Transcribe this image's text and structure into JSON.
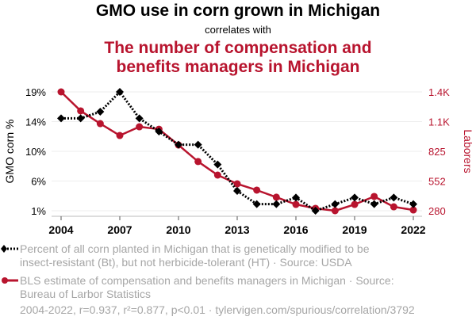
{
  "header": {
    "title": "GMO use in corn grown in Michigan",
    "subtitle": "correlates with",
    "title2_line1": "The number of compensation and",
    "title2_line2": "benefits managers in Michigan"
  },
  "colors": {
    "series1": "#000000",
    "series2": "#b8142e",
    "legend_text": "#a6a6a6",
    "grid": "#eeeeee"
  },
  "chart_data": {
    "type": "line",
    "x": [
      2004,
      2005,
      2006,
      2007,
      2008,
      2009,
      2010,
      2011,
      2012,
      2013,
      2014,
      2015,
      2016,
      2017,
      2018,
      2019,
      2020,
      2021,
      2022
    ],
    "xticks": [
      "2004",
      "2007",
      "2010",
      "2013",
      "2016",
      "2019",
      "2022"
    ],
    "xtick_values": [
      2004,
      2007,
      2010,
      2013,
      2016,
      2019,
      2022
    ],
    "xlim": [
      2004,
      2022
    ],
    "series": [
      {
        "name": "Percent of all corn planted in Michigan that is genetically modified to be insect-resistant (Bt), but not herbicide-tolerant (HT) · Source: USDA",
        "axis": "left",
        "style": "dotted-diamond",
        "values": [
          15,
          15,
          16,
          19,
          15,
          13,
          11,
          11,
          8,
          4,
          2,
          2,
          3,
          1,
          2,
          3,
          2,
          3,
          2
        ]
      },
      {
        "name": "BLS estimate of compensation and benefits managers in Michigan · Source: Bureau of Larbor Statistics",
        "axis": "right",
        "style": "solid-circle",
        "values": [
          1370,
          1196,
          1079,
          970,
          1050,
          1028,
          883,
          731,
          607,
          527,
          469,
          404,
          338,
          302,
          280,
          338,
          411,
          316,
          287
        ]
      }
    ],
    "left_axis": {
      "label": "GMO corn %",
      "ticks": [
        "1%",
        "6%",
        "10%",
        "14%",
        "19%"
      ],
      "ylim": [
        1,
        19
      ]
    },
    "right_axis": {
      "label": "Laborers",
      "ticks": [
        "280",
        "552",
        "825",
        "1.1K",
        "1.4K"
      ],
      "ylim": [
        280,
        1370
      ]
    },
    "grid": true,
    "legend_position": "bottom"
  },
  "legend": {
    "item1_line1": "Percent of all corn planted in Michigan that is genetically modified to be",
    "item1_line2": "insect-resistant (Bt), but not herbicide-tolerant (HT) · Source: USDA",
    "item2_line1": "BLS estimate of compensation and benefits managers in Michigan · Source:",
    "item2_line2": "Bureau of Larbor Statistics"
  },
  "footer": "2004-2022, r=0.937, r²=0.877, p<0.01 · tylervigen.com/spurious/correlation/3792"
}
